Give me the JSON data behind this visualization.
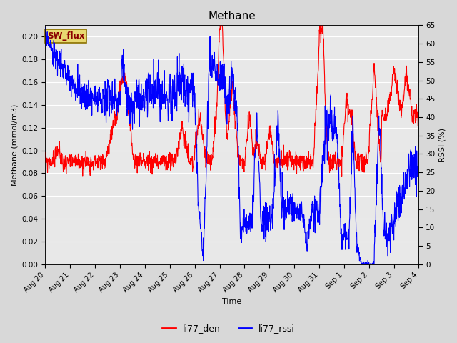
{
  "title": "Methane",
  "ylabel_left": "Methane (mmol/m3)",
  "ylabel_right": "RSSI (%)",
  "xlabel": "Time",
  "ylim_left": [
    0.0,
    0.21
  ],
  "ylim_right": [
    0,
    65
  ],
  "yticks_left": [
    0.0,
    0.02,
    0.04,
    0.06,
    0.08,
    0.1,
    0.12,
    0.14,
    0.16,
    0.18,
    0.2
  ],
  "yticks_right": [
    0,
    5,
    10,
    15,
    20,
    25,
    30,
    35,
    40,
    45,
    50,
    55,
    60,
    65
  ],
  "fig_bg_color": "#d8d8d8",
  "plot_bg_color": "#e8e8e8",
  "grid_color": "#ffffff",
  "annotation_text": "SW_flux",
  "annotation_bg": "#e8d870",
  "annotation_fg": "#8b0000",
  "annotation_border": "#8b7000",
  "line_color_den": "red",
  "line_color_rssi": "blue",
  "line_width": 0.8,
  "xtick_labels": [
    "Aug 20",
    "Aug 21",
    "Aug 22",
    "Aug 23",
    "Aug 24",
    "Aug 25",
    "Aug 26",
    "Aug 27",
    "Aug 28",
    "Aug 29",
    "Aug 30",
    "Aug 31",
    "Sep 1",
    "Sep 2",
    "Sep 3",
    "Sep 4"
  ],
  "num_points": 1500
}
